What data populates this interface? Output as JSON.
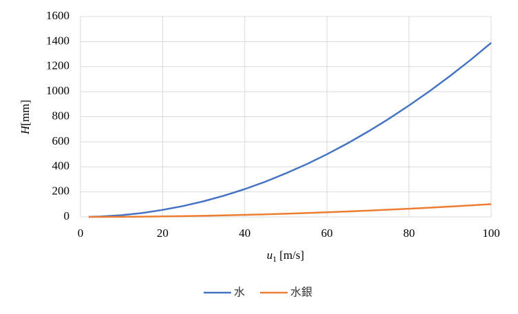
{
  "chart_data": {
    "type": "line",
    "x_label": {
      "var": "u",
      "sub": "1",
      "unit": "[m/s]"
    },
    "y_label": {
      "var": "H",
      "unit": "[mm]"
    },
    "x": [
      2,
      5,
      10,
      15,
      20,
      25,
      30,
      35,
      40,
      45,
      50,
      55,
      60,
      65,
      70,
      75,
      80,
      85,
      90,
      95,
      100
    ],
    "series": [
      {
        "name": "水",
        "color": "#4472c4",
        "values": [
          0.6,
          3.5,
          14,
          31,
          56,
          87,
          125,
          170,
          222,
          281,
          348,
          420,
          500,
          587,
          681,
          782,
          890,
          1004,
          1126,
          1254,
          1390
        ]
      },
      {
        "name": "水銀",
        "color": "#ed7d31",
        "values": [
          0,
          0.3,
          1,
          2.3,
          4.1,
          6.4,
          9.2,
          12.5,
          16.3,
          20.7,
          25.5,
          30.9,
          36.8,
          43.1,
          50,
          57.4,
          65.3,
          73.7,
          82.6,
          92.1,
          102
        ]
      }
    ],
    "xlim": [
      0,
      100
    ],
    "xticks": [
      0,
      20,
      40,
      60,
      80,
      100
    ],
    "ylim": [
      0,
      1600
    ],
    "yticks": [
      0,
      200,
      400,
      600,
      800,
      1000,
      1200,
      1400,
      1600
    ],
    "grid": true,
    "legend": "bottom"
  }
}
